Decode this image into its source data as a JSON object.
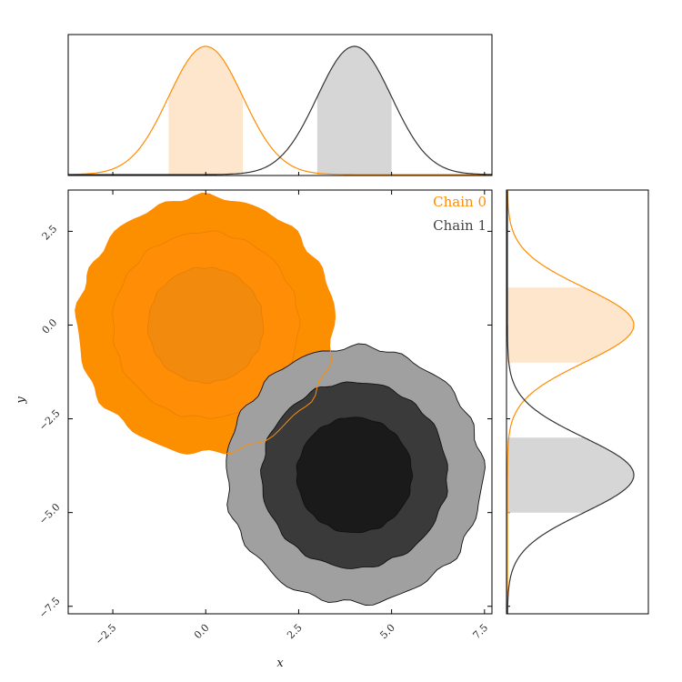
{
  "chart_data": {
    "type": "contour",
    "xlabel": "x",
    "ylabel": "y",
    "xlim": [
      -3.7,
      7.7
    ],
    "ylim": [
      -7.7,
      3.6
    ],
    "x_ticks": [
      -2.5,
      0.0,
      2.5,
      5.0,
      7.5
    ],
    "y_ticks": [
      2.5,
      0.0,
      -2.5,
      -5.0,
      -7.5
    ],
    "x_tick_labels": [
      "−2.5",
      "0.0",
      "2.5",
      "5.0",
      "7.5"
    ],
    "y_tick_labels": [
      "2.5",
      "0.0",
      "−2.5",
      "−5.0",
      "−7.5"
    ],
    "legend_position": "top-right",
    "series": [
      {
        "name": "Chain 0",
        "color": "#ff8c00",
        "mean": [
          0.0,
          0.0
        ],
        "std": [
          1.0,
          1.0
        ],
        "contour_radii_sigma": [
          1.55,
          2.5,
          3.45
        ],
        "fill_colors": [
          "#f28a0d",
          "#ff8e06",
          "#fc8f00"
        ],
        "marginal_x_band": [
          -1.0,
          1.0
        ],
        "marginal_y_band": [
          -1.0,
          1.0
        ],
        "band_fill": "#fde6cc"
      },
      {
        "name": "Chain 1",
        "color": "#333333",
        "mean": [
          4.0,
          -4.0
        ],
        "std": [
          1.0,
          1.0
        ],
        "contour_radii_sigma": [
          1.55,
          2.5,
          3.45
        ],
        "fill_colors": [
          "#1a1a1a",
          "#3a3a3a",
          "#a0a0a0"
        ],
        "marginal_x_band": [
          3.0,
          5.0
        ],
        "marginal_y_band": [
          -5.0,
          -3.0
        ],
        "band_fill": "#d6d6d6"
      }
    ]
  }
}
